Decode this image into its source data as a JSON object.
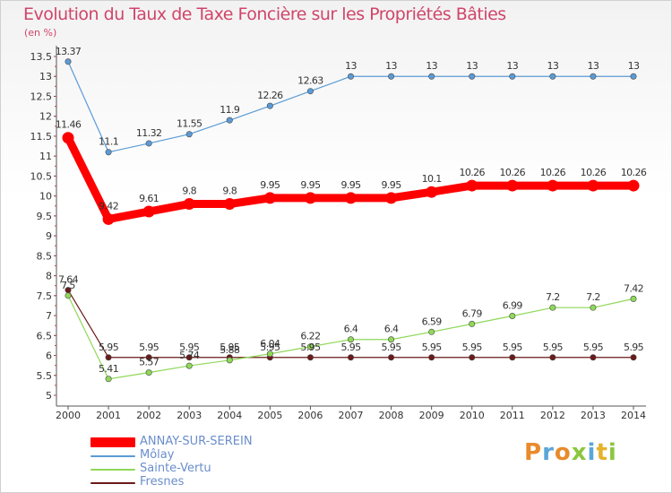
{
  "chart_data": {
    "type": "line",
    "title": "Evolution du Taux de Taxe Foncière sur les Propriétés Bâties",
    "unit_label": "(en %)",
    "x": [
      "2000",
      "2001",
      "2002",
      "2003",
      "2004",
      "2005",
      "2006",
      "2007",
      "2008",
      "2009",
      "2010",
      "2011",
      "2012",
      "2013",
      "2014"
    ],
    "ylim": [
      5,
      13.5
    ],
    "yticks": [
      5,
      5.5,
      6,
      6.5,
      7,
      7.5,
      8,
      8.5,
      9,
      9.5,
      10,
      10.5,
      11,
      11.5,
      12,
      12.5,
      13,
      13.5
    ],
    "ytick_labels": [
      "5",
      "5.5",
      "6",
      "6.5",
      "7",
      "7.5",
      "8",
      "8.5",
      "9",
      "9.5",
      "10",
      "10.5",
      "11",
      "11.5",
      "12",
      "12.5",
      "13",
      "13.5"
    ],
    "grid": false,
    "legend_position": "bottom-left",
    "series": [
      {
        "name": "ANNAY-SUR-SEREIN",
        "color": "#ff0000",
        "emphasis": true,
        "values": [
          11.46,
          9.42,
          9.61,
          9.8,
          9.8,
          9.95,
          9.95,
          9.95,
          9.95,
          10.1,
          10.26,
          10.26,
          10.26,
          10.26,
          10.26
        ],
        "labels": [
          "11.46",
          "9.42",
          "9.61",
          "9.8",
          "9.8",
          "9.95",
          "9.95",
          "9.95",
          "9.95",
          "10.1",
          "10.26",
          "10.26",
          "10.26",
          "10.26",
          "10.26"
        ]
      },
      {
        "name": "Môlay",
        "color": "#5b9bd5",
        "emphasis": false,
        "values": [
          13.37,
          11.1,
          11.32,
          11.55,
          11.9,
          12.26,
          12.63,
          13,
          13,
          13,
          13,
          13,
          13,
          13,
          13
        ],
        "labels": [
          "13.37",
          "11.1",
          "11.32",
          "11.55",
          "11.9",
          "12.26",
          "12.63",
          "13",
          "13",
          "13",
          "13",
          "13",
          "13",
          "13",
          "13"
        ]
      },
      {
        "name": "Sainte-Vertu",
        "color": "#8fd858",
        "emphasis": false,
        "values": [
          7.5,
          5.41,
          5.57,
          5.74,
          5.88,
          6.04,
          6.22,
          6.4,
          6.4,
          6.59,
          6.79,
          6.99,
          7.2,
          7.2,
          7.42
        ],
        "labels": [
          "7.5",
          "5.41",
          "5.57",
          "5.74",
          "5.88",
          "6.04",
          "6.22",
          "6.4",
          "6.4",
          "6.59",
          "6.79",
          "6.99",
          "7.2",
          "7.2",
          "7.42"
        ]
      },
      {
        "name": "Fresnes",
        "color": "#6b1a1a",
        "emphasis": false,
        "values": [
          7.64,
          5.95,
          5.95,
          5.95,
          5.95,
          5.95,
          5.95,
          5.95,
          5.95,
          5.95,
          5.95,
          5.95,
          5.95,
          5.95,
          5.95
        ],
        "labels": [
          "7.64",
          "5.95",
          "5.95",
          "5.95",
          "5.95",
          "5.95",
          "5.95",
          "5.95",
          "5.95",
          "5.95",
          "5.95",
          "5.95",
          "5.95",
          "5.95",
          "5.95"
        ]
      }
    ]
  },
  "brand": {
    "letters": [
      "P",
      "r",
      "o",
      "x",
      "i",
      "t",
      "i"
    ]
  }
}
